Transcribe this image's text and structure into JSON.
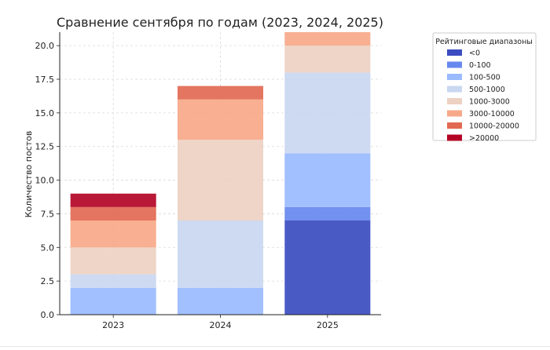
{
  "chart_data": {
    "type": "bar",
    "stacked": true,
    "title": "Сравнение сентября по годам (2023, 2024, 2025)",
    "xlabel": "",
    "ylabel": "Количество постов",
    "categories": [
      "2023",
      "2024",
      "2025"
    ],
    "ylim": [
      0,
      21
    ],
    "yticks": [
      "0.0",
      "2.5",
      "5.0",
      "7.5",
      "10.0",
      "12.5",
      "15.0",
      "17.5",
      "20.0"
    ],
    "grid": true,
    "legend_title": "Рейтинговые диапазоны",
    "legend_position": "right, outside the plot",
    "series": [
      {
        "name": "<0",
        "color": "#3b4cc0",
        "values": [
          0,
          0,
          7
        ]
      },
      {
        "name": "0-100",
        "color": "#6788ee",
        "values": [
          0,
          0,
          1
        ]
      },
      {
        "name": "100-500",
        "color": "#9abbff",
        "values": [
          2,
          2,
          4
        ]
      },
      {
        "name": "500-1000",
        "color": "#c9d7f0",
        "values": [
          1,
          5,
          6
        ]
      },
      {
        "name": "1000-3000",
        "color": "#edd1c2",
        "values": [
          2,
          6,
          2
        ]
      },
      {
        "name": "3000-10000",
        "color": "#f7a889",
        "values": [
          2,
          3,
          1
        ]
      },
      {
        "name": "10000-20000",
        "color": "#e26952",
        "values": [
          1,
          1,
          0
        ]
      },
      {
        "name": ">20000",
        "color": "#b40426",
        "values": [
          1,
          0,
          0
        ]
      }
    ]
  }
}
